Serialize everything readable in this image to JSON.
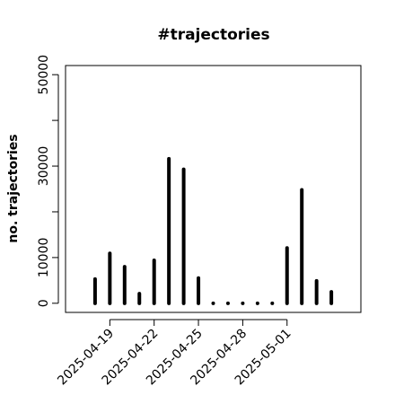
{
  "chart_data": {
    "type": "bar",
    "title": "#trajectories",
    "ylabel": "no. trajectories",
    "x": [
      "2025-04-18",
      "2025-04-19",
      "2025-04-20",
      "2025-04-21",
      "2025-04-22",
      "2025-04-23",
      "2025-04-24",
      "2025-04-25",
      "2025-04-26",
      "2025-04-27",
      "2025-04-28",
      "2025-04-29",
      "2025-04-30",
      "2025-05-01",
      "2025-05-02",
      "2025-05-03",
      "2025-05-04"
    ],
    "values": [
      5300,
      10900,
      8000,
      2100,
      9400,
      31600,
      29300,
      5500,
      0,
      0,
      0,
      0,
      0,
      12100,
      24800,
      4900,
      2500
    ],
    "color": "#000000",
    "xlim": [
      "2025-04-16",
      "2025-05-06"
    ],
    "xticks": [
      "2025-04-19",
      "2025-04-22",
      "2025-04-25",
      "2025-04-28",
      "2025-05-01"
    ],
    "ylim": [
      -2000,
      52000
    ],
    "yticks": [
      0,
      10000,
      30000,
      50000
    ],
    "yminor_ticks": [
      20000,
      40000
    ]
  }
}
